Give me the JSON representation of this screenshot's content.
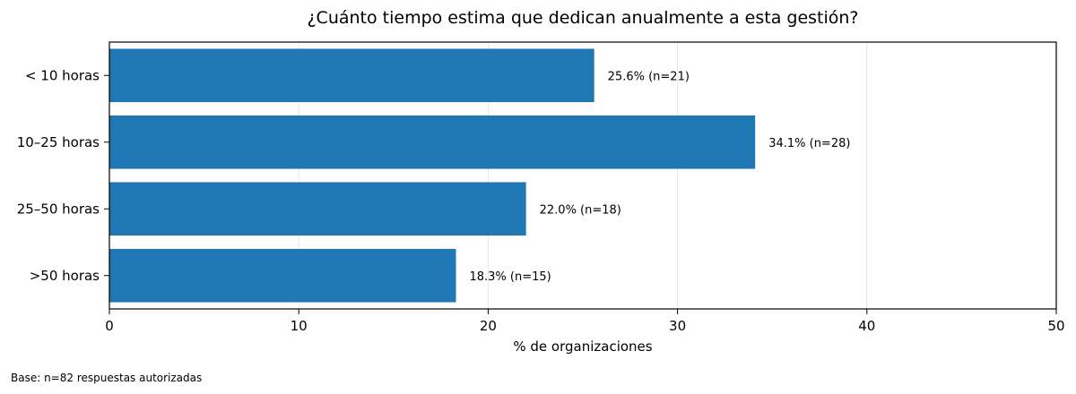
{
  "chart_data": {
    "type": "bar",
    "orientation": "horizontal",
    "title": "¿Cuánto tiempo estima que dedican anualmente a esta gestión?",
    "xlabel": "% de organizaciones",
    "ylabel": "",
    "categories": [
      "< 10 horas",
      "10–25 horas",
      "25–50 horas",
      ">50 horas"
    ],
    "values": [
      25.6,
      34.1,
      22.0,
      18.3
    ],
    "data_labels": [
      "25.6% (n=21)",
      "34.1% (n=28)",
      "22.0% (n=18)",
      "18.3% (n=15)"
    ],
    "xlim": [
      0,
      50
    ],
    "xticks": [
      0,
      10,
      20,
      30,
      40,
      50
    ],
    "grid": "vertical",
    "bar_color": "#1f77b4"
  },
  "footnote": "Base: n=82 respuestas autorizadas"
}
